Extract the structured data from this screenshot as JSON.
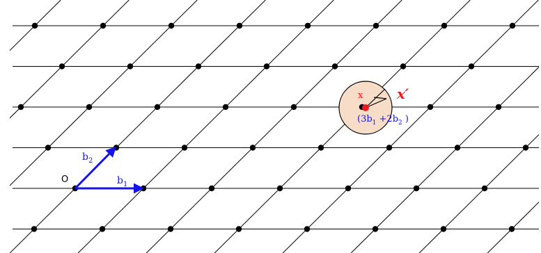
{
  "diagram": {
    "labels": {
      "origin": "O",
      "b1_base": "b",
      "b1_sub": "1",
      "b2_base": "b",
      "b2_sub": "2",
      "x": "x",
      "x_prime": "x′",
      "combo_open": "(3b",
      "combo_sub1": "1",
      "combo_mid": " +2b",
      "combo_sub2": "2",
      "combo_close": " )"
    },
    "colors": {
      "lattice_line": "#000000",
      "lattice_point": "#000000",
      "basis_vector": "#1414e6",
      "point_x": "#e81d1d",
      "circle_fill": "#f7dcc8",
      "circle_stroke": "#000000"
    }
  }
}
